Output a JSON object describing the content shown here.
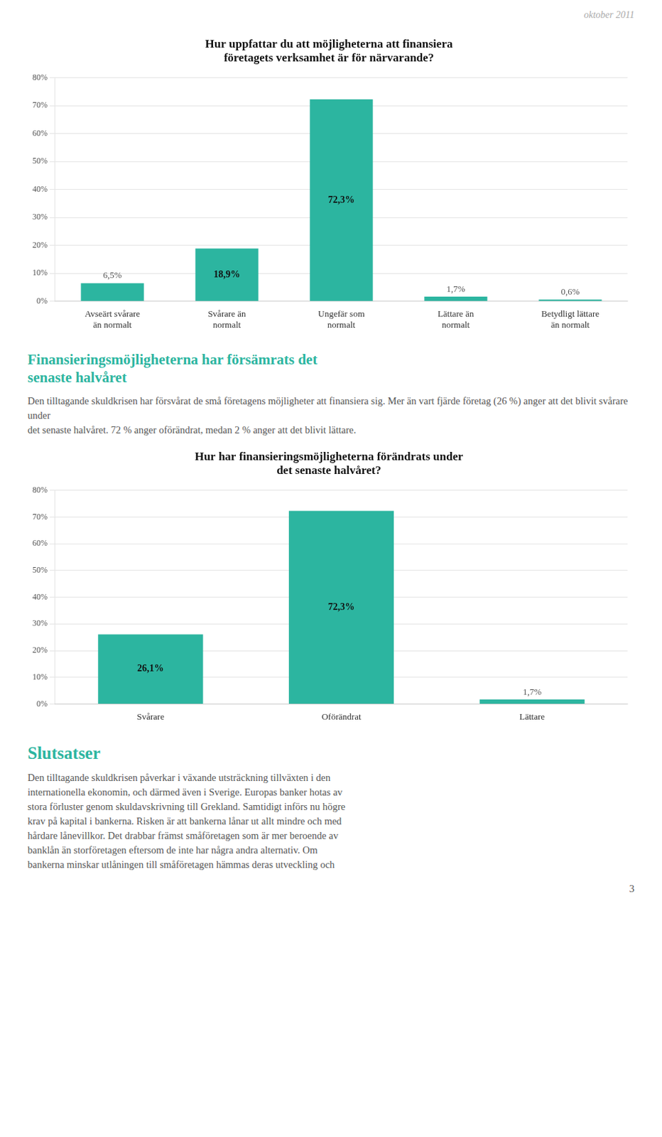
{
  "header": "oktober 2011",
  "chart_data": [
    {
      "type": "bar",
      "title": "Hur uppfattar du att möjligheterna att finansiera\nföretagets verksamhet är för närvarande?",
      "categories": [
        "Avseärt svårare\nän normalt",
        "Svårare än\nnormalt",
        "Ungefär som\nnormalt",
        "Lättare än\nnormalt",
        "Betydligt lättare\nän normalt"
      ],
      "values": [
        6.5,
        18.9,
        72.3,
        1.7,
        0.6
      ],
      "value_labels": [
        "6,5%",
        "18,9%",
        "72,3%",
        "1,7%",
        "0,6%"
      ],
      "data_labels": true,
      "color": "#2cb5a0",
      "ylim": [
        0,
        80
      ],
      "yticks": [
        {
          "value": 0,
          "label": "0%"
        },
        {
          "value": 10,
          "label": "10%"
        },
        {
          "value": 20,
          "label": "20%"
        },
        {
          "value": 30,
          "label": "30%"
        },
        {
          "value": 40,
          "label": "40%"
        },
        {
          "value": 50,
          "label": "50%"
        },
        {
          "value": 60,
          "label": "60%"
        },
        {
          "value": 70,
          "label": "70%"
        },
        {
          "value": 80,
          "label": "80%"
        }
      ],
      "grid": true
    },
    {
      "type": "bar",
      "title": "Hur har finansieringsmöjligheterna förändrats under\ndet senaste halvåret?",
      "categories": [
        "Svårare",
        "Oförändrat",
        "Lättare"
      ],
      "values": [
        26.1,
        72.3,
        1.7
      ],
      "value_labels": [
        "26,1%",
        "72,3%",
        "1,7%"
      ],
      "data_labels": true,
      "color": "#2cb5a0",
      "ylim": [
        0,
        80
      ],
      "yticks": [
        {
          "value": 0,
          "label": "0%"
        },
        {
          "value": 10,
          "label": "10%"
        },
        {
          "value": 20,
          "label": "20%"
        },
        {
          "value": 30,
          "label": "30%"
        },
        {
          "value": 40,
          "label": "40%"
        },
        {
          "value": 50,
          "label": "50%"
        },
        {
          "value": 60,
          "label": "60%"
        },
        {
          "value": 70,
          "label": "70%"
        },
        {
          "value": 80,
          "label": "80%"
        }
      ],
      "grid": true
    }
  ],
  "sections": [
    {
      "heading": [
        "Finansieringsmöjligheterna har försämrats det",
        "senaste halvåret"
      ],
      "body": [
        "Den tilltagande skuldkrisen har försvårat de små företagens möjligheter att finansiera sig. Mer än vart fjärde företag (26 %) anger att det blivit svårare under",
        "det senaste halvåret. 72 % anger oförändrat, medan 2 % anger att det blivit lättare."
      ]
    },
    {
      "heading": [
        "Slutsatser"
      ],
      "body": [
        "Den tilltagande skuldkrisen påverkar i växande utsträckning tillväxten i den",
        "internationella ekonomin, och därmed även i Sverige. Europas banker hotas av",
        "stora förluster genom skuldavskrivning till Grekland. Samtidigt införs nu högre",
        "krav på kapital i bankerna. Risken är att bankerna lånar ut allt mindre och med",
        "hårdare lånevillkor. Det drabbar främst småföretagen som är mer beroende av",
        "banklån än storföretagen eftersom de inte har några andra alternativ. Om",
        "bankerna minskar utlåningen till småföretagen hämmas deras utveckling och"
      ]
    }
  ],
  "page_number": "3"
}
